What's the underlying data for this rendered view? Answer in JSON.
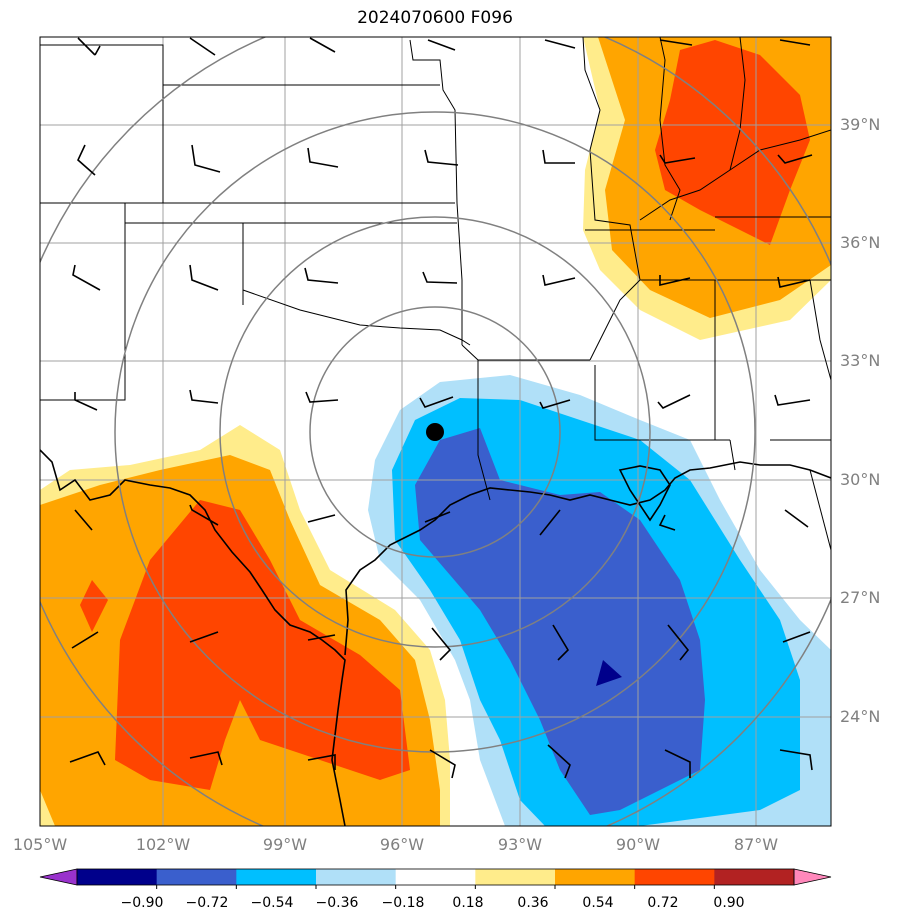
{
  "title": "2024070600 F096",
  "lat_labels": [
    "39°N",
    "36°N",
    "33°N",
    "30°N",
    "27°N",
    "24°N"
  ],
  "lon_labels": [
    "105°W",
    "102°W",
    "99°W",
    "96°W",
    "93°W",
    "90°W",
    "87°W"
  ],
  "colorbar": {
    "ticks": [
      "−0.90",
      "−0.72",
      "−0.54",
      "−0.36",
      "−0.18",
      "0.18",
      "0.36",
      "0.54",
      "0.72",
      "0.90"
    ],
    "colors": [
      "#9932cc",
      "#00008b",
      "#3a5fcd",
      "#00bfff",
      "#b0e0f8",
      "#ffffff",
      "#ffec8b",
      "#ffa500",
      "#ff4500",
      "#b22222",
      "#ff88bb"
    ]
  },
  "map": {
    "extent_lon": [
      -105,
      -85
    ],
    "extent_lat": [
      21,
      41
    ],
    "marker_label": "",
    "contour_colors": {
      "dark_blue": "#00008b",
      "royal_blue": "#3a5fcd",
      "deep_sky_blue": "#00bfff",
      "light_blue": "#b0e0f8",
      "light_yellow": "#ffec8b",
      "orange": "#ffa500",
      "orange_red": "#ff4500"
    }
  }
}
